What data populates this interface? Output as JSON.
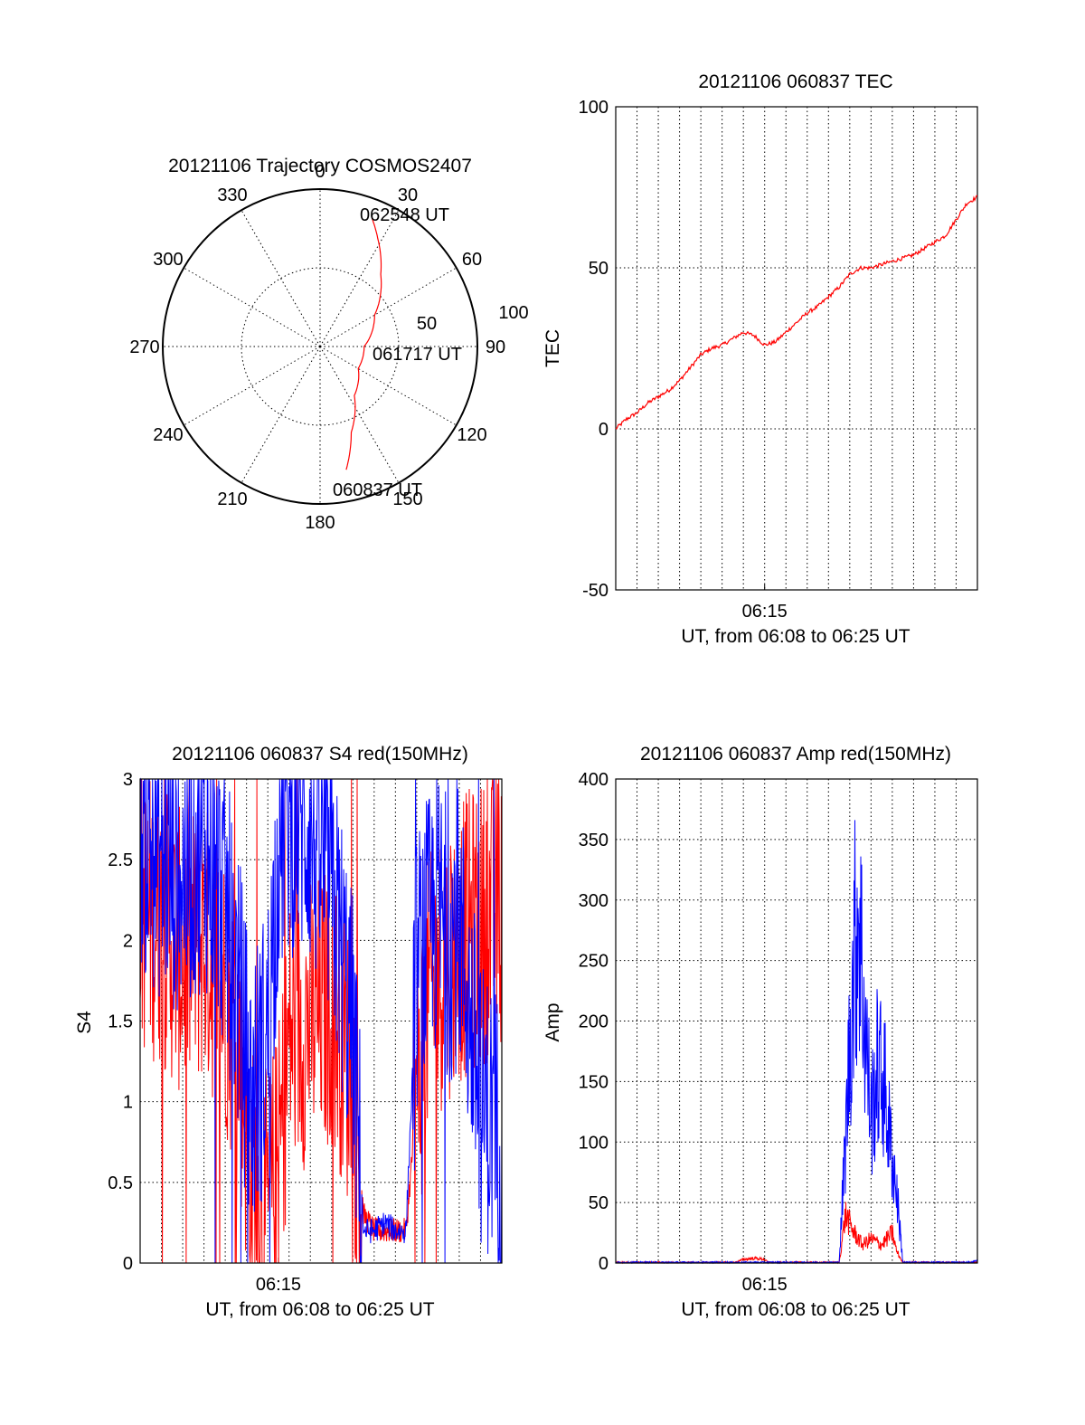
{
  "figure": {
    "date": "20121106"
  },
  "chart_data": [
    {
      "type": "polar",
      "title": "20121106 Trajectory COSMOS2407",
      "angle_labels": [
        "0",
        "30",
        "60",
        "90",
        "120",
        "150",
        "180",
        "210",
        "240",
        "270",
        "300",
        "330"
      ],
      "radius_labels": [
        "50",
        "100"
      ],
      "elevation_rings": [
        0,
        50
      ],
      "trajectory": {
        "color": "#ff0000",
        "points": [
          {
            "az": 168,
            "r": 80
          },
          {
            "az": 160,
            "r": 58
          },
          {
            "az": 145,
            "r": 38
          },
          {
            "az": 120,
            "r": 28
          },
          {
            "az": 90,
            "r": 28
          },
          {
            "az": 60,
            "r": 40
          },
          {
            "az": 40,
            "r": 60
          },
          {
            "az": 28,
            "r": 78
          },
          {
            "az": 22,
            "r": 88
          }
        ],
        "start_label": "060837 UT",
        "mid_label": "061717 UT",
        "end_label": "062548 UT"
      }
    },
    {
      "type": "line",
      "title": "20121106 060837 TEC",
      "xlabel": "UT, from 06:08 to 06:25 UT",
      "ylabel": "TEC",
      "xlim": [
        0,
        17
      ],
      "ylim": [
        -50,
        100
      ],
      "yticks": [
        -50,
        0,
        50,
        100
      ],
      "xtick": {
        "value": 7,
        "label": "06:15"
      },
      "series": [
        {
          "color": "#ff0000",
          "x": [
            0,
            0.5,
            1,
            1.5,
            2,
            2.5,
            3,
            3.5,
            4,
            4.5,
            5,
            5.5,
            6,
            6.5,
            7,
            7.5,
            8,
            8.5,
            9,
            9.5,
            10,
            10.5,
            11,
            11.5,
            12,
            12.5,
            13,
            13.5,
            14,
            14.5,
            15,
            15.5,
            16,
            16.5,
            17
          ],
          "values": [
            0,
            3,
            5,
            8,
            10,
            12,
            15,
            19,
            23,
            25,
            26,
            28,
            30,
            29,
            26,
            27,
            30,
            33,
            36,
            38,
            41,
            44,
            48,
            50,
            50,
            51,
            52,
            53,
            54,
            56,
            58,
            60,
            65,
            70,
            72
          ]
        }
      ]
    },
    {
      "type": "line",
      "title": "20121106 060837 S4 red(150MHz)",
      "xlabel": "UT, from 06:08 to 06:25 UT",
      "ylabel": "S4",
      "xlim": [
        0,
        17
      ],
      "ylim": [
        0,
        3
      ],
      "yticks": [
        0,
        0.5,
        1,
        1.5,
        2,
        2.5,
        3
      ],
      "ytick_labels": [
        "0",
        "0.5",
        "1",
        "1.5",
        "2",
        "2.5",
        "3"
      ],
      "xtick": {
        "value": 6.5,
        "label": "06:15"
      },
      "series": [
        {
          "color": "#ff0000",
          "x": [
            0,
            1,
            2,
            3,
            4,
            4.7,
            5.2,
            5.6,
            6,
            6.5,
            7,
            8,
            9,
            9.5,
            10,
            10.5,
            11,
            11.5,
            12,
            12.5,
            13,
            13.5,
            14,
            14.5,
            15,
            16,
            17
          ],
          "values": [
            2.2,
            2.1,
            1.9,
            2.0,
            1.7,
            1.3,
            0.5,
            0.35,
            0.3,
            0.6,
            1.4,
            1.5,
            1.6,
            1.4,
            1.1,
            0.3,
            0.2,
            0.2,
            0.2,
            0.2,
            1.0,
            1.6,
            1.8,
            1.9,
            2.0,
            2.1,
            2.2
          ]
        },
        {
          "color": "#0000ff",
          "x": [
            0,
            1,
            2,
            3,
            4,
            4.7,
            5.2,
            5.6,
            6,
            6.5,
            7,
            8,
            9,
            9.5,
            10,
            10.5,
            11,
            11.5,
            12,
            12.5,
            13,
            13.5,
            14,
            14.5,
            15,
            16,
            17
          ],
          "values": [
            2.7,
            2.5,
            2.4,
            2.6,
            2.2,
            1.6,
            1.0,
            1.2,
            1.4,
            2.6,
            2.8,
            2.7,
            2.3,
            1.9,
            1.4,
            0.2,
            0.2,
            0.25,
            0.2,
            0.2,
            1.8,
            2.0,
            2.2,
            2.0,
            2.1,
            1.0,
            0.8
          ]
        }
      ]
    },
    {
      "type": "line",
      "title": "20121106 060837 Amp red(150MHz)",
      "xlabel": "UT, from 06:08 to 06:25 UT",
      "ylabel": "Amp",
      "xlim": [
        0,
        17
      ],
      "ylim": [
        0,
        400
      ],
      "yticks": [
        0,
        50,
        100,
        150,
        200,
        250,
        300,
        350,
        400
      ],
      "xtick": {
        "value": 7,
        "label": "06:15"
      },
      "series": [
        {
          "color": "#ff0000",
          "x": [
            0,
            5.5,
            6,
            6.5,
            7,
            7.2,
            10.5,
            10.8,
            11.2,
            11.6,
            12,
            12.5,
            13,
            13.2,
            13.5,
            17
          ],
          "values": [
            0,
            0,
            3,
            4,
            3,
            0,
            0,
            40,
            25,
            15,
            20,
            15,
            25,
            10,
            0,
            0
          ]
        },
        {
          "color": "#0000ff",
          "x": [
            0,
            10.5,
            10.8,
            11.1,
            11.4,
            11.7,
            12,
            12.3,
            12.6,
            12.9,
            13.2,
            13.5,
            16.5,
            17
          ],
          "values": [
            0,
            0,
            100,
            220,
            300,
            200,
            120,
            160,
            150,
            100,
            60,
            0,
            0,
            2
          ]
        }
      ]
    }
  ]
}
